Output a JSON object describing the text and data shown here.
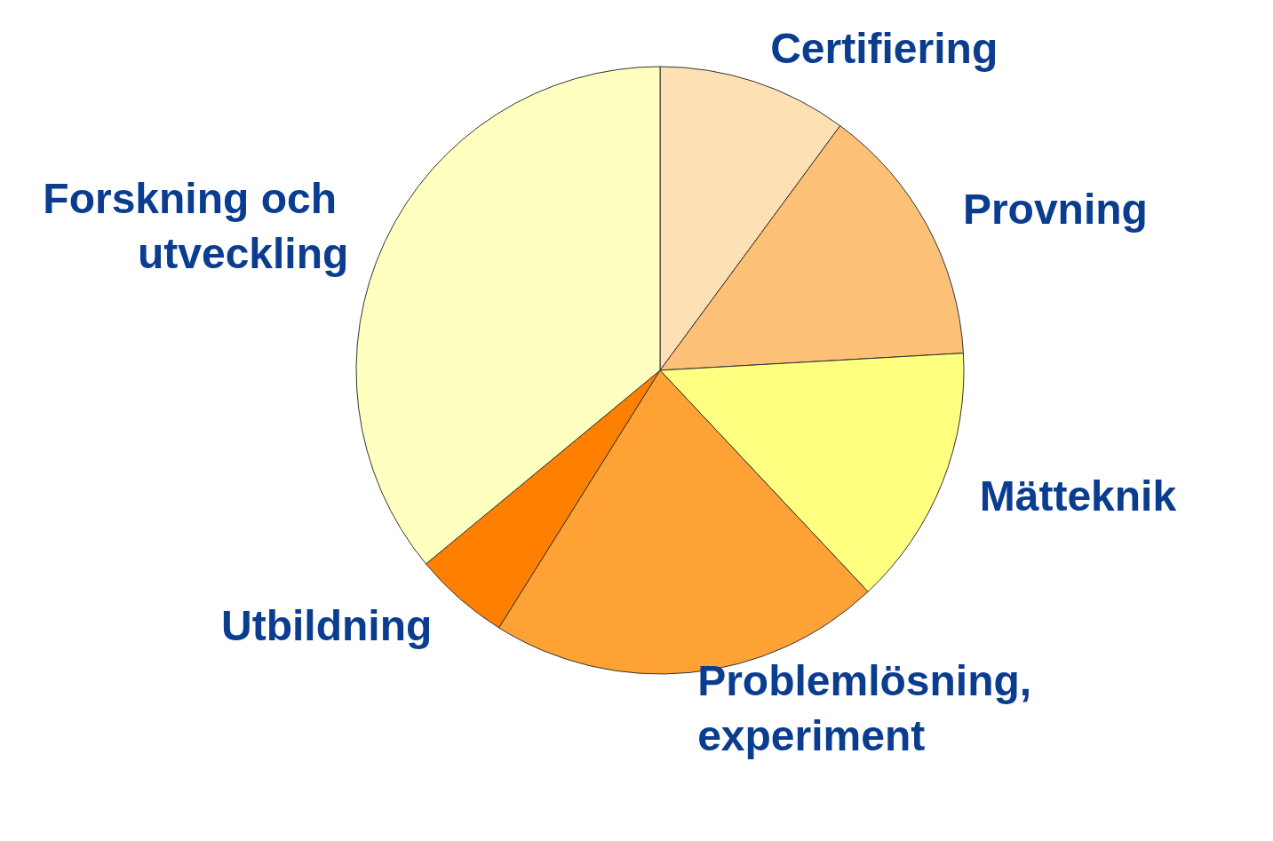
{
  "chart_data": {
    "type": "pie",
    "categories": [
      "Certifiering",
      "Provning",
      "Mätteknik",
      "Problemlösning, experiment",
      "Utbildning",
      "Forskning och utveckling"
    ],
    "values": [
      10.1,
      14.0,
      13.9,
      20.9,
      5.1,
      36.0
    ],
    "colors": [
      "#fde0b4",
      "#fdc077",
      "#ffff80",
      "#ffa235",
      "#ff8000",
      "#ffffc0"
    ]
  }
}
